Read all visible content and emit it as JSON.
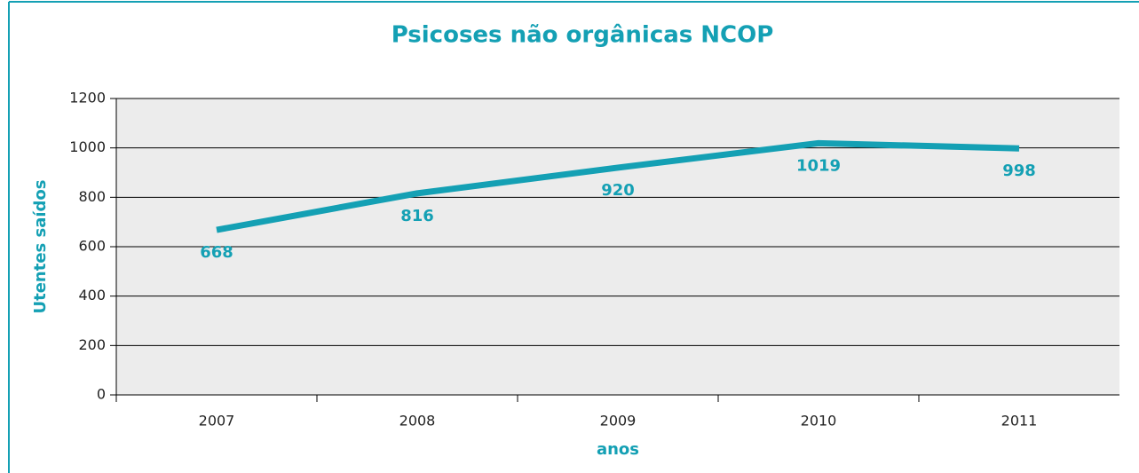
{
  "chart_data": {
    "type": "line",
    "title": "Psicoses não orgânicas NCOP",
    "xlabel": "anos",
    "ylabel": "Utentes saídos",
    "categories": [
      "2007",
      "2008",
      "2009",
      "2010",
      "2011"
    ],
    "series": [
      {
        "name": "Utentes saídos",
        "color": "#14a0b4",
        "values": [
          668,
          816,
          920,
          1019,
          998
        ]
      }
    ],
    "ylim": [
      0,
      1200
    ],
    "yticks": [
      0,
      200,
      400,
      600,
      800,
      1000,
      1200
    ],
    "grid": true
  }
}
